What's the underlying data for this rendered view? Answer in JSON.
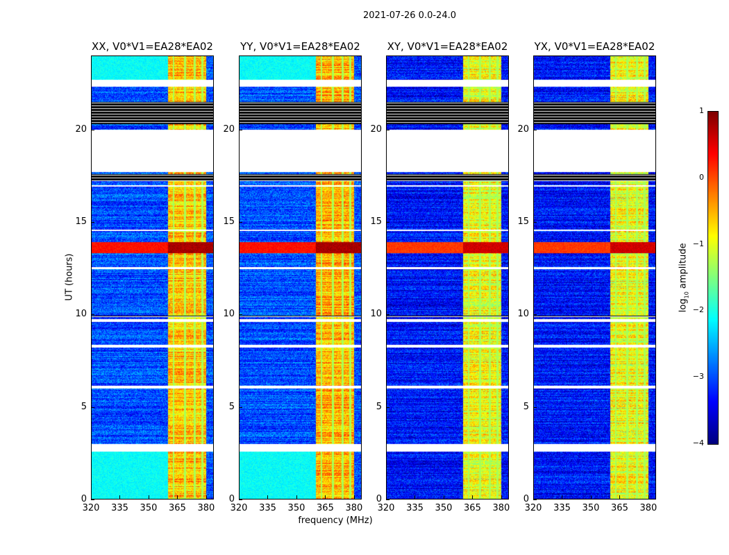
{
  "title": "2021-07-26 0.0-24.0",
  "chart_data": {
    "type": "heatmap",
    "title": "2021-07-26 0.0-24.0",
    "xlabel": "frequency (MHz)",
    "ylabel": "UT (hours)",
    "xlim": [
      320,
      384
    ],
    "ylim": [
      0,
      24
    ],
    "xticks": [
      "320",
      "335",
      "350",
      "365",
      "380"
    ],
    "xtick_values": [
      320,
      335,
      350,
      365,
      380
    ],
    "yticks": [
      "0",
      "5",
      "10",
      "15",
      "20"
    ],
    "ytick_values": [
      0,
      5,
      10,
      15,
      20
    ],
    "panels": [
      {
        "title": "XX, V0*V1=EA28*EA02",
        "background_log_amp": -3.0,
        "cyan_low_band_hours": [
          [
            0,
            2.6
          ],
          [
            22.7,
            24
          ]
        ],
        "rfi_log_amp": -0.6,
        "event_log_amp": 0.5
      },
      {
        "title": "YY, V0*V1=EA28*EA02",
        "background_log_amp": -3.0,
        "cyan_low_band_hours": [
          [
            0,
            2.6
          ],
          [
            22.7,
            24
          ]
        ],
        "rfi_log_amp": -0.5,
        "event_log_amp": 0.5
      },
      {
        "title": "XY, V0*V1=EA28*EA02",
        "background_log_amp": -3.3,
        "cyan_low_band_hours": [],
        "rfi_log_amp": -0.9,
        "event_log_amp": 0.3
      },
      {
        "title": "YX, V0*V1=EA28*EA02",
        "background_log_amp": -3.3,
        "cyan_low_band_hours": [],
        "rfi_log_amp": -0.9,
        "event_log_amp": 0.3
      }
    ],
    "rfi_band_mhz": [
      360,
      380
    ],
    "bright_event_ut": [
      13.3,
      13.9
    ],
    "flagged_white_hours": [
      [
        22.3,
        22.7
      ],
      [
        17.7,
        20
      ],
      [
        2.6,
        3.0
      ],
      [
        6.0,
        6.15
      ],
      [
        8.2,
        8.35
      ],
      [
        9.6,
        9.75
      ],
      [
        12.45,
        12.55
      ],
      [
        14.5,
        14.6
      ],
      [
        16.9,
        17.0
      ]
    ],
    "flagged_black_hours": [
      [
        20.3,
        21.5
      ],
      [
        17.2,
        17.6
      ],
      [
        9.85,
        9.95
      ]
    ],
    "colorbar": {
      "label": "log10 amplitude",
      "range": [
        -4,
        1
      ],
      "ticks": [
        "1",
        "0",
        "−1",
        "−2",
        "−3",
        "−4"
      ],
      "tick_values": [
        1,
        0,
        -1,
        -2,
        -3,
        -4
      ],
      "colormap": "jet"
    }
  }
}
